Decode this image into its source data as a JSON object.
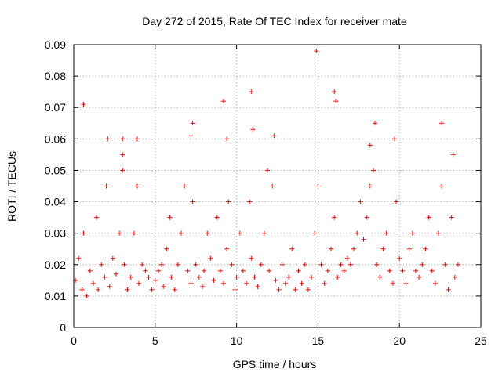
{
  "chart_data": {
    "type": "scatter",
    "title": "Day 272 of 2015, Rate Of TEC Index for receiver mate",
    "xlabel": "GPS time / hours",
    "ylabel": "ROTI / TECUs",
    "xlim": [
      0,
      25
    ],
    "ylim": [
      0,
      0.09
    ],
    "x_ticks": [
      0,
      5,
      10,
      15,
      20,
      25
    ],
    "x_tick_labels": [
      "0",
      "5",
      "10",
      "15",
      "20",
      "25"
    ],
    "y_ticks": [
      0,
      0.01,
      0.02,
      0.03,
      0.04,
      0.05,
      0.06,
      0.07,
      0.08,
      0.09
    ],
    "y_tick_labels": [
      "0",
      "0.01",
      "0.02",
      "0.03",
      "0.04",
      "0.05",
      "0.06",
      "0.07",
      "0.08",
      "0.09"
    ],
    "grid": true,
    "marker": "+",
    "series": [
      {
        "name": "ROTI",
        "color": "#ff0000",
        "x": [
          0.1,
          0.3,
          0.5,
          0.6,
          0.8,
          1.0,
          1.2,
          1.4,
          1.5,
          1.7,
          1.9,
          2.0,
          2.2,
          2.4,
          2.6,
          2.8,
          3.0,
          3.1,
          3.3,
          3.5,
          3.7,
          3.9,
          4.0,
          4.2,
          4.4,
          4.6,
          4.8,
          5.0,
          5.2,
          5.4,
          5.5,
          5.7,
          5.9,
          6.0,
          6.2,
          6.4,
          6.6,
          6.8,
          7.0,
          7.2,
          7.3,
          7.5,
          7.7,
          7.9,
          8.0,
          8.2,
          8.4,
          8.6,
          8.8,
          9.0,
          9.2,
          9.4,
          9.5,
          9.7,
          9.9,
          10.0,
          10.2,
          10.4,
          10.6,
          10.8,
          10.9,
          11.1,
          11.3,
          11.5,
          11.7,
          11.9,
          12.0,
          12.2,
          12.4,
          12.6,
          12.8,
          13.0,
          13.2,
          13.4,
          13.6,
          13.8,
          14.0,
          14.2,
          14.4,
          14.6,
          14.8,
          15.0,
          15.2,
          15.4,
          15.6,
          15.8,
          16.0,
          16.2,
          16.4,
          16.6,
          16.8,
          17.0,
          17.2,
          17.4,
          17.6,
          17.8,
          18.0,
          18.2,
          18.4,
          18.6,
          18.8,
          19.0,
          19.2,
          19.4,
          19.6,
          19.8,
          20.0,
          20.2,
          20.4,
          20.6,
          20.8,
          21.0,
          21.2,
          21.4,
          21.6,
          21.8,
          22.0,
          22.2,
          22.4,
          22.6,
          22.8,
          23.0,
          23.2,
          23.4,
          23.6,
          0.6,
          2.1,
          3.0,
          3.9,
          7.2,
          9.2,
          10.9,
          12.3,
          14.9,
          16.0,
          16.1,
          18.5,
          19.7,
          22.6,
          23.3,
          3.0,
          7.3,
          9.4,
          11.0,
          18.2
        ],
        "y": [
          0.015,
          0.022,
          0.012,
          0.03,
          0.01,
          0.018,
          0.014,
          0.035,
          0.012,
          0.02,
          0.016,
          0.045,
          0.013,
          0.022,
          0.017,
          0.03,
          0.05,
          0.02,
          0.012,
          0.016,
          0.03,
          0.045,
          0.014,
          0.02,
          0.018,
          0.016,
          0.012,
          0.015,
          0.018,
          0.02,
          0.013,
          0.025,
          0.035,
          0.016,
          0.012,
          0.02,
          0.03,
          0.045,
          0.018,
          0.014,
          0.04,
          0.02,
          0.016,
          0.013,
          0.018,
          0.03,
          0.022,
          0.015,
          0.035,
          0.018,
          0.014,
          0.025,
          0.04,
          0.02,
          0.012,
          0.016,
          0.03,
          0.018,
          0.014,
          0.04,
          0.022,
          0.016,
          0.013,
          0.02,
          0.03,
          0.05,
          0.018,
          0.045,
          0.015,
          0.012,
          0.02,
          0.014,
          0.016,
          0.025,
          0.012,
          0.018,
          0.014,
          0.02,
          0.012,
          0.016,
          0.03,
          0.045,
          0.02,
          0.014,
          0.018,
          0.025,
          0.035,
          0.016,
          0.02,
          0.018,
          0.022,
          0.02,
          0.025,
          0.03,
          0.04,
          0.028,
          0.035,
          0.045,
          0.05,
          0.02,
          0.016,
          0.025,
          0.03,
          0.018,
          0.014,
          0.04,
          0.022,
          0.018,
          0.014,
          0.025,
          0.03,
          0.018,
          0.016,
          0.02,
          0.025,
          0.035,
          0.018,
          0.014,
          0.03,
          0.045,
          0.02,
          0.012,
          0.035,
          0.016,
          0.02,
          0.071,
          0.06,
          0.06,
          0.06,
          0.061,
          0.072,
          0.075,
          0.061,
          0.088,
          0.075,
          0.072,
          0.065,
          0.06,
          0.065,
          0.055,
          0.055,
          0.065,
          0.06,
          0.063,
          0.058
        ]
      }
    ]
  }
}
